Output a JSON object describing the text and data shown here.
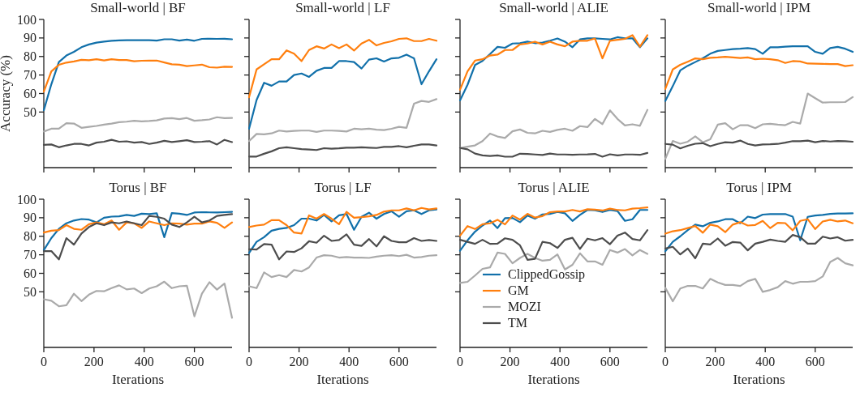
{
  "chart_data": [
    {
      "type": "line",
      "title": "Small-world | BF",
      "ylabel": "Accuracy (%)",
      "tick_labels": "y",
      "x": [
        0,
        30,
        60,
        90,
        120,
        150,
        180,
        210,
        240,
        270,
        300,
        330,
        360,
        390,
        420,
        450,
        480,
        510,
        540,
        570,
        600,
        630,
        660,
        690,
        720,
        750
      ],
      "xlim": [
        0,
        750
      ],
      "xticks": [
        0,
        200,
        400,
        600
      ],
      "ylim": [
        20,
        100
      ],
      "yticks": [
        50,
        60,
        70,
        80,
        90,
        100
      ],
      "series": [
        {
          "color": "#1170aa",
          "values": [
            51,
            65,
            77,
            80.5,
            82.5,
            85,
            86.5,
            87.5,
            88,
            88.5,
            88.7,
            88.8,
            88.8,
            88.8,
            88.8,
            88.6,
            89.3,
            89.3,
            88.6,
            89.1,
            88.5,
            89.5,
            89.6,
            89.5,
            89.6,
            89.3
          ]
        },
        {
          "color": "#ff7f0e",
          "values": [
            61,
            72,
            75.5,
            76.7,
            77.3,
            78.2,
            78,
            78.5,
            77.9,
            78.5,
            78.1,
            78.1,
            77.4,
            77.7,
            77.8,
            77.8,
            76.8,
            75.8,
            75.6,
            74.8,
            75.2,
            75.6,
            74.2,
            74,
            74.5,
            74.4
          ]
        },
        {
          "color": "#aaaaaa",
          "values": [
            39.5,
            41,
            41,
            44,
            43.8,
            41.5,
            42,
            42.5,
            43.2,
            43.8,
            44.5,
            44.8,
            45.3,
            45,
            45.2,
            45.5,
            46.5,
            46.7,
            46.2,
            46.8,
            45.3,
            45.6,
            46,
            47.2,
            46.7,
            46.8
          ]
        },
        {
          "color": "#4d4d4d",
          "values": [
            32.3,
            32.5,
            31,
            32,
            32.8,
            32.8,
            32,
            33.5,
            34,
            35,
            34,
            34.2,
            33.5,
            33.8,
            32.8,
            33.5,
            34.5,
            33.8,
            34.3,
            34.8,
            33.8,
            34,
            34.3,
            32.5,
            35,
            33.8
          ]
        }
      ]
    },
    {
      "type": "line",
      "title": "Small-world | LF",
      "tick_labels": false,
      "x": [
        0,
        30,
        60,
        90,
        120,
        150,
        180,
        210,
        240,
        270,
        300,
        330,
        360,
        390,
        420,
        450,
        480,
        510,
        540,
        570,
        600,
        630,
        660,
        690,
        720,
        750
      ],
      "xlim": [
        0,
        750
      ],
      "xticks": [
        0,
        200,
        400,
        600
      ],
      "ylim": [
        20,
        100
      ],
      "yticks": [
        50,
        60,
        70,
        80,
        90,
        100
      ],
      "series": [
        {
          "color": "#1170aa",
          "values": [
            41,
            56.5,
            65.8,
            64.2,
            66.5,
            66.5,
            70,
            70.8,
            69,
            72.3,
            73.8,
            73.8,
            77.5,
            77.5,
            77,
            73.5,
            78.3,
            79,
            77.3,
            79,
            79.3,
            81,
            79,
            65,
            72,
            78.5
          ]
        },
        {
          "color": "#ff7f0e",
          "values": [
            58,
            73,
            75.8,
            78.5,
            78.5,
            83.3,
            81.5,
            77.5,
            83.5,
            85.5,
            84.3,
            86.5,
            84.5,
            86.5,
            83.2,
            87,
            89,
            86,
            87.3,
            88.2,
            89.5,
            89.8,
            88.3,
            88.3,
            89.5,
            88.5
          ]
        },
        {
          "color": "#aaaaaa",
          "values": [
            34.3,
            38.2,
            38,
            38.5,
            40,
            39.5,
            39.8,
            40,
            40,
            39.3,
            40,
            40,
            39.8,
            39.5,
            41,
            40.7,
            41,
            40.5,
            40.3,
            41,
            42,
            41.5,
            54.5,
            56,
            55.5,
            57
          ]
        },
        {
          "color": "#4d4d4d",
          "values": [
            26,
            26,
            27.5,
            28.8,
            30.5,
            31,
            30.5,
            30,
            29.8,
            29.5,
            30.5,
            30.2,
            30.4,
            30.8,
            30.8,
            31,
            30.8,
            30.6,
            31.2,
            31.2,
            31.6,
            31,
            31.8,
            32.5,
            32.5,
            32
          ]
        }
      ]
    },
    {
      "type": "line",
      "title": "Small-world | ALIE",
      "tick_labels": false,
      "x": [
        0,
        30,
        60,
        90,
        120,
        150,
        180,
        210,
        240,
        270,
        300,
        330,
        360,
        390,
        420,
        450,
        480,
        510,
        540,
        570,
        600,
        630,
        660,
        690,
        720,
        750
      ],
      "xlim": [
        0,
        750
      ],
      "xticks": [
        0,
        200,
        400,
        600
      ],
      "ylim": [
        20,
        100
      ],
      "yticks": [
        50,
        60,
        70,
        80,
        90,
        100
      ],
      "series": [
        {
          "color": "#1170aa",
          "values": [
            56.3,
            64.7,
            75.4,
            77.6,
            81.3,
            85.2,
            84.7,
            87,
            87.2,
            88,
            87.2,
            87.5,
            88.5,
            89.7,
            88,
            85,
            89.2,
            89.8,
            89.8,
            89.5,
            89.2,
            90.4,
            89.8,
            89.8,
            85,
            89.8
          ]
        },
        {
          "color": "#ff7f0e",
          "values": [
            62,
            72,
            77.8,
            78.5,
            80.5,
            81,
            83.5,
            83.5,
            86.5,
            87,
            88,
            86.5,
            88,
            86.5,
            85.5,
            88,
            88.5,
            88.5,
            89.7,
            79,
            88.5,
            89,
            89.5,
            91.5,
            85.3,
            91.5
          ]
        },
        {
          "color": "#aaaaaa",
          "values": [
            30.6,
            31.3,
            32,
            34.3,
            38.4,
            36.8,
            36,
            39.6,
            40.6,
            38.8,
            38.5,
            39.9,
            39.3,
            40.4,
            41,
            39.9,
            42.4,
            41.9,
            46.3,
            43.5,
            50.9,
            46.3,
            42.8,
            43.4,
            42.6,
            51.2
          ]
        },
        {
          "color": "#4d4d4d",
          "values": [
            30.6,
            29.9,
            27.6,
            26.6,
            26.3,
            26.6,
            25.9,
            25.9,
            27.5,
            27.4,
            27.1,
            26.8,
            27.6,
            27.1,
            27.1,
            26.9,
            27.1,
            27.2,
            27.4,
            25.9,
            27.2,
            26.6,
            27.1,
            27.1,
            26.9,
            27.9
          ]
        }
      ]
    },
    {
      "type": "line",
      "title": "Small-world | IPM",
      "tick_labels": false,
      "x": [
        0,
        30,
        60,
        90,
        120,
        150,
        180,
        210,
        240,
        270,
        300,
        330,
        360,
        390,
        420,
        450,
        480,
        510,
        540,
        570,
        600,
        630,
        660,
        690,
        720,
        750
      ],
      "xlim": [
        0,
        750
      ],
      "xticks": [
        0,
        200,
        400,
        600
      ],
      "ylim": [
        20,
        100
      ],
      "yticks": [
        50,
        60,
        70,
        80,
        90,
        100
      ],
      "series": [
        {
          "color": "#1170aa",
          "values": [
            56,
            64,
            72.5,
            75,
            77,
            79,
            81.5,
            83,
            83.5,
            84,
            84.2,
            84.5,
            84,
            81.5,
            85,
            85,
            85.3,
            85.5,
            85.5,
            85.5,
            82.5,
            81.5,
            84.5,
            85.2,
            84.2,
            82.5
          ]
        },
        {
          "color": "#ff7f0e",
          "values": [
            62.5,
            73,
            75.5,
            77.2,
            79,
            78.5,
            79.3,
            79.5,
            79.8,
            79.5,
            79.2,
            79.5,
            78.5,
            78.8,
            78.5,
            78,
            76.5,
            77.5,
            77.3,
            76.2,
            76.1,
            76,
            75.9,
            75.9,
            74.8,
            75.3
          ]
        },
        {
          "color": "#aaaaaa",
          "values": [
            24.7,
            34.4,
            32.9,
            34,
            36.9,
            33.7,
            35.3,
            43.2,
            44,
            40.7,
            42.9,
            42.9,
            41.3,
            43.4,
            43.7,
            43.2,
            42.9,
            44.7,
            43.8,
            60,
            57.5,
            55.1,
            55.3,
            55.3,
            55.4,
            58.1
          ]
        },
        {
          "color": "#4d4d4d",
          "values": [
            32.8,
            32.4,
            30.4,
            31.8,
            32.9,
            33.2,
            31.6,
            32.8,
            33.7,
            33.5,
            34.6,
            32.8,
            32,
            32.5,
            32.6,
            32.8,
            33.5,
            34.3,
            34.3,
            34.6,
            33.7,
            34.4,
            34.1,
            34.4,
            34.3,
            34
          ]
        }
      ]
    },
    {
      "type": "line",
      "title": "Torus | BF",
      "xlabel": "Iterations",
      "x": [
        0,
        30,
        60,
        90,
        120,
        150,
        180,
        210,
        240,
        270,
        300,
        330,
        360,
        390,
        420,
        450,
        480,
        510,
        540,
        570,
        600,
        630,
        660,
        690,
        720,
        750
      ],
      "xlim": [
        0,
        750
      ],
      "xticks": [
        0,
        200,
        400,
        600
      ],
      "ylim": [
        20,
        100
      ],
      "yticks": [
        50,
        60,
        70,
        80,
        90,
        100
      ],
      "series": [
        {
          "color": "#1170aa",
          "values": [
            72.5,
            79,
            84,
            87,
            88.5,
            89.3,
            89,
            87.5,
            90,
            90.6,
            90.8,
            91.5,
            91,
            92.2,
            92,
            92.4,
            79.5,
            92.5,
            92.2,
            91.5,
            92.8,
            93,
            92.9,
            92.8,
            93,
            93.2
          ]
        },
        {
          "color": "#ff7f0e",
          "values": [
            82,
            83,
            83.3,
            86,
            84,
            83.5,
            86.5,
            87.5,
            86.5,
            88.5,
            83.5,
            87.5,
            87,
            84.5,
            88,
            87,
            86,
            87,
            86.8,
            86.3,
            86.8,
            86.8,
            88,
            87.3,
            84.5,
            87.5
          ]
        },
        {
          "color": "#aaaaaa",
          "values": [
            46,
            45.2,
            42.2,
            42.8,
            49,
            45,
            48.5,
            50.5,
            50.3,
            52,
            53.5,
            51.3,
            51.8,
            49.3,
            51.8,
            53,
            55.5,
            52,
            53,
            53.3,
            36.8,
            49,
            55.2,
            51.2,
            54.5,
            36
          ]
        },
        {
          "color": "#4d4d4d",
          "values": [
            72,
            72,
            67.5,
            79,
            75.5,
            81.5,
            85,
            87,
            86,
            87.5,
            87,
            88,
            87,
            86,
            91,
            90.5,
            89.5,
            86.3,
            85,
            87.5,
            90.5,
            87.5,
            88.5,
            91,
            91.5,
            92
          ]
        }
      ]
    },
    {
      "type": "line",
      "title": "Torus | LF",
      "xlabel": "Iterations",
      "tick_labels": "x",
      "x": [
        0,
        30,
        60,
        90,
        120,
        150,
        180,
        210,
        240,
        270,
        300,
        330,
        360,
        390,
        420,
        450,
        480,
        510,
        540,
        570,
        600,
        630,
        660,
        690,
        720,
        750
      ],
      "xlim": [
        0,
        750
      ],
      "xticks": [
        0,
        200,
        400,
        600
      ],
      "ylim": [
        20,
        100
      ],
      "yticks": [
        50,
        60,
        70,
        80,
        90,
        100
      ],
      "series": [
        {
          "color": "#1170aa",
          "values": [
            71,
            77,
            79.5,
            83,
            84,
            84.5,
            86,
            89.5,
            89.5,
            88.5,
            91.5,
            88,
            91.3,
            92,
            83.5,
            90.5,
            92.7,
            89.5,
            92,
            93.5,
            90.5,
            93.5,
            94,
            92,
            94,
            94.5
          ]
        },
        {
          "color": "#ff7f0e",
          "values": [
            85,
            85.8,
            86.3,
            88.7,
            88.7,
            86,
            82,
            81.5,
            91.3,
            89.5,
            92,
            89.5,
            86.5,
            93.2,
            90,
            90.3,
            90.8,
            91.5,
            93.3,
            94,
            94,
            95,
            94,
            95.3,
            94.5,
            95
          ]
        },
        {
          "color": "#aaaaaa",
          "values": [
            53,
            52,
            60.5,
            58,
            59,
            58,
            61.8,
            61,
            63.2,
            68.5,
            69.8,
            69.5,
            68.5,
            68.8,
            68.5,
            68.5,
            68.3,
            69,
            69.5,
            69.8,
            69.3,
            70,
            68.5,
            68.8,
            69.5,
            69.8
          ]
        },
        {
          "color": "#4d4d4d",
          "values": [
            73,
            72.8,
            75.8,
            75.5,
            67.5,
            71.8,
            71.5,
            73.5,
            77.3,
            76.5,
            80.3,
            77.5,
            78,
            81,
            75.5,
            74.8,
            78.5,
            74.5,
            80,
            77.5,
            76.8,
            76.8,
            79,
            77.5,
            78,
            77.5
          ]
        }
      ]
    },
    {
      "type": "line",
      "title": "Torus | ALIE",
      "xlabel": "Iterations",
      "tick_labels": "x",
      "legend": "bottom left",
      "x": [
        0,
        30,
        60,
        90,
        120,
        150,
        180,
        210,
        240,
        270,
        300,
        330,
        360,
        390,
        420,
        450,
        480,
        510,
        540,
        570,
        600,
        630,
        660,
        690,
        720,
        750
      ],
      "xlim": [
        0,
        750
      ],
      "xticks": [
        0,
        200,
        400,
        600
      ],
      "ylim": [
        20,
        100
      ],
      "yticks": [
        50,
        60,
        70,
        80,
        90,
        100
      ],
      "series": [
        {
          "name": "ClippedGossip",
          "color": "#1170aa",
          "values": [
            72.2,
            77.8,
            82.5,
            85.8,
            88.5,
            84.4,
            89.8,
            89.9,
            87.6,
            91.2,
            89.5,
            91.8,
            92.1,
            93.1,
            92.4,
            88.3,
            91.5,
            94.2,
            94,
            93.1,
            94.2,
            93.6,
            88.3,
            89.2,
            94.2,
            94.2
          ]
        },
        {
          "name": "GM",
          "color": "#ff7f0e",
          "values": [
            80.3,
            85.5,
            83.9,
            86.5,
            87,
            88.9,
            86.4,
            91.2,
            89,
            92.1,
            90.1,
            90.9,
            93,
            93.4,
            93.4,
            94.2,
            93.4,
            94.6,
            94.4,
            93.9,
            94.9,
            94.2,
            94,
            94.9,
            95.2,
            95.6
          ]
        },
        {
          "name": "MOZI",
          "color": "#aaaaaa",
          "values": [
            54.8,
            55.4,
            58.8,
            62.4,
            63.2,
            71.2,
            70.5,
            65.4,
            68.3,
            70.5,
            68.3,
            66.8,
            67.3,
            70.2,
            62.1,
            64.6,
            70.8,
            66.4,
            66.4,
            64.6,
            72.6,
            71.2,
            73.1,
            69.7,
            72.6,
            70.5
          ]
        },
        {
          "name": "TM",
          "color": "#4d4d4d",
          "values": [
            78.1,
            77,
            75.9,
            78.1,
            75.9,
            76,
            78.9,
            78.1,
            75.1,
            67.3,
            67.8,
            77,
            76.3,
            73.7,
            78.1,
            79.2,
            73.2,
            78.7,
            77.8,
            79,
            75.7,
            80.3,
            82,
            78.5,
            77.8,
            83.3
          ]
        }
      ]
    },
    {
      "type": "line",
      "title": "Torus | IPM",
      "xlabel": "Iterations",
      "tick_labels": "x",
      "x": [
        0,
        30,
        60,
        90,
        120,
        150,
        180,
        210,
        240,
        270,
        300,
        330,
        360,
        390,
        420,
        450,
        480,
        510,
        540,
        570,
        600,
        630,
        660,
        690,
        720,
        750
      ],
      "xlim": [
        0,
        750
      ],
      "xticks": [
        0,
        200,
        400,
        600
      ],
      "ylim": [
        20,
        100
      ],
      "yticks": [
        50,
        60,
        70,
        80,
        90,
        100
      ],
      "series": [
        {
          "color": "#1170aa",
          "values": [
            71.9,
            77,
            80,
            83.3,
            86.3,
            85.4,
            87.3,
            88,
            89.2,
            89.2,
            87,
            90.6,
            89.8,
            91.7,
            92,
            92,
            92,
            90.6,
            77.8,
            90.5,
            91.2,
            91.5,
            92.1,
            92.3,
            92.3,
            92.4
          ]
        },
        {
          "color": "#ff7f0e",
          "values": [
            81.4,
            82.7,
            83.3,
            84.4,
            85.5,
            81.9,
            86.3,
            85.4,
            82.2,
            86.3,
            87.6,
            85.8,
            86.1,
            88.3,
            84.4,
            87.3,
            87.1,
            83.2,
            88.3,
            89.2,
            83.9,
            88,
            88.9,
            88,
            88.5,
            87
          ]
        },
        {
          "color": "#aaaaaa",
          "values": [
            52.2,
            44.9,
            51.8,
            53.2,
            53.2,
            51.8,
            57,
            55.1,
            53.7,
            53.7,
            53.2,
            55.8,
            57,
            50,
            51,
            52.5,
            55.8,
            54.4,
            55.4,
            55.4,
            55.8,
            58.3,
            66.1,
            68.3,
            65.4,
            64.3
          ]
        },
        {
          "color": "#4d4d4d",
          "values": [
            73.4,
            74.3,
            70.2,
            73.4,
            68.1,
            76,
            75.6,
            78.8,
            74.9,
            76.9,
            76.6,
            72.4,
            76,
            77,
            78.2,
            77.5,
            77,
            80.7,
            79.5,
            76,
            76,
            79.8,
            78.8,
            79.5,
            77.6,
            78.1
          ]
        }
      ]
    }
  ]
}
